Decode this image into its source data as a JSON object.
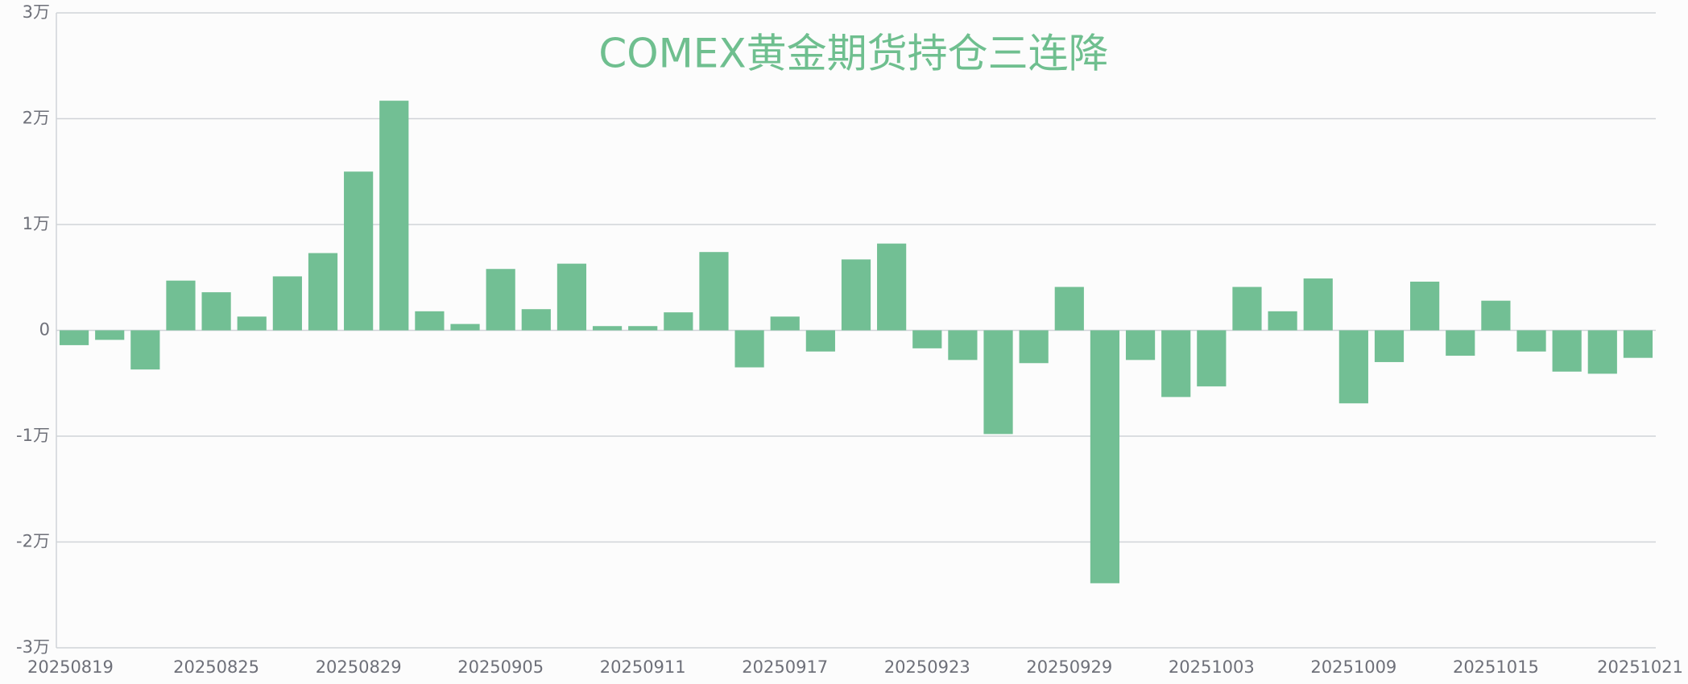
{
  "chart_data": {
    "type": "bar",
    "title": "COMEX黄金期货持仓三连降",
    "categories": [
      "20250819",
      null,
      null,
      null,
      "20250825",
      null,
      null,
      null,
      "20250829",
      null,
      null,
      null,
      "20250905",
      null,
      null,
      null,
      "20250911",
      null,
      null,
      null,
      "20250917",
      null,
      null,
      null,
      "20250923",
      null,
      null,
      null,
      "20250929",
      null,
      null,
      null,
      "20251003",
      null,
      null,
      null,
      "20251009",
      null,
      null,
      null,
      "20251015",
      null,
      null,
      null,
      "20251021"
    ],
    "values": [
      -1400,
      -900,
      -3700,
      4700,
      3600,
      1300,
      5100,
      7300,
      15000,
      21700,
      1800,
      600,
      5800,
      2000,
      6300,
      400,
      400,
      1700,
      7400,
      -3500,
      1300,
      -2000,
      6700,
      8200,
      -1700,
      -2800,
      -9800,
      -3100,
      4100,
      -23900,
      -2800,
      -6300,
      -5300,
      4100,
      1800,
      4900,
      -6900,
      -3000,
      4600,
      -2400,
      2800,
      -2000,
      -3900,
      -4100,
      -2600
    ],
    "color": "#72bf94",
    "ylim": [
      -30000,
      30000
    ],
    "yticks": [
      {
        "value": -30000,
        "label": "-3万"
      },
      {
        "value": -20000,
        "label": "-2万"
      },
      {
        "value": -10000,
        "label": "-1万"
      },
      0,
      {
        "value": 10000,
        "label": "1万"
      },
      {
        "value": 20000,
        "label": "2万"
      },
      {
        "value": 30000,
        "label": "3万"
      }
    ],
    "grid": true
  }
}
